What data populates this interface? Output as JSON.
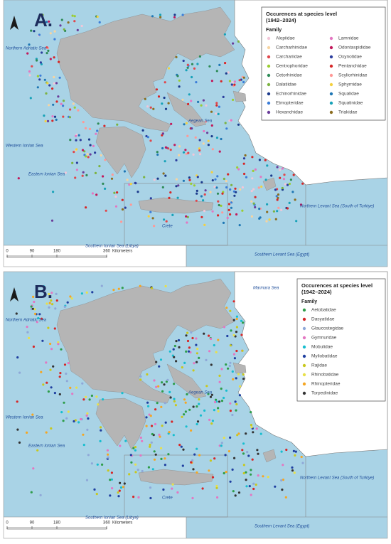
{
  "panels": [
    {
      "label": "A.",
      "legend": {
        "title": "Occurences at species level (1942–2024)",
        "subtitle": "Family",
        "items": [
          {
            "name": "Alopiidae",
            "color": "#f2c6d8"
          },
          {
            "name": "Carcharhinidae",
            "color": "#f7d4a0"
          },
          {
            "name": "Carchariidae",
            "color": "#e0474c"
          },
          {
            "name": "Centrophoridae",
            "color": "#9acd32"
          },
          {
            "name": "Cetorhinidae",
            "color": "#2e8b57"
          },
          {
            "name": "Dalatiidae",
            "color": "#7cb342"
          },
          {
            "name": "Echinorhinidae",
            "color": "#1b3a8c"
          },
          {
            "name": "Etmopteridae",
            "color": "#3b7dd8"
          },
          {
            "name": "Hexanchidae",
            "color": "#6a3d9a"
          },
          {
            "name": "Lamnidae",
            "color": "#e377c2"
          },
          {
            "name": "Odontaspididae",
            "color": "#c2185b"
          },
          {
            "name": "Oxynotidae",
            "color": "#2c3e9e"
          },
          {
            "name": "Pentanchidae",
            "color": "#d62728"
          },
          {
            "name": "Scyliorhinidae",
            "color": "#ff9896"
          },
          {
            "name": "Sphyrnidae",
            "color": "#f4d03f"
          },
          {
            "name": "Squalidae",
            "color": "#1f77b4"
          },
          {
            "name": "Squatinidae",
            "color": "#17a2b8"
          },
          {
            "name": "Triakidae",
            "color": "#8c6d1f"
          }
        ]
      },
      "sea_labels": [
        "Northern Adriatic Sea",
        "Western Ionian Sea",
        "Eastern Ionian Sea",
        "Aegean Sea",
        "Crete",
        "Northern Levant Sea (South of Turkiye)",
        "Southern Ionian Sea (Libya)",
        "Southern Levant Sea (Egypt)"
      ],
      "scale": {
        "ticks": [
          0,
          90,
          180,
          360
        ],
        "unit": "Kilometers"
      }
    },
    {
      "label": "B.",
      "legend": {
        "title": "Occurences at species level (1942–2024)",
        "subtitle": "Family",
        "items": [
          {
            "name": "Aetobatidae",
            "color": "#2e9d4a"
          },
          {
            "name": "Dasyatidae",
            "color": "#d62728"
          },
          {
            "name": "Glaucostegidae",
            "color": "#8fa8d8"
          },
          {
            "name": "Gymnuridae",
            "color": "#e377c2"
          },
          {
            "name": "Mobulidae",
            "color": "#17becf"
          },
          {
            "name": "Myliobatidae",
            "color": "#1f3fa0"
          },
          {
            "name": "Rajidae",
            "color": "#c8c81e"
          },
          {
            "name": "Rhinobatidae",
            "color": "#e8e04a"
          },
          {
            "name": "Rhinopteridae",
            "color": "#f5a623"
          },
          {
            "name": "Torpedinidae",
            "color": "#333333"
          }
        ]
      },
      "sea_labels": [
        "Northern Adriatic Sea",
        "Western Ionian Sea",
        "Eastern Ionian Sea",
        "Aegean Sea",
        "Crete",
        "Northern Levant Sea (South of Turkiye)",
        "Southern Ionian Sea (Libya)",
        "Southern Levant Sea (Egypt)",
        "Marmara Sea"
      ],
      "scale": {
        "ticks": [
          0,
          90,
          180,
          360
        ],
        "unit": "Kilometers"
      }
    }
  ]
}
